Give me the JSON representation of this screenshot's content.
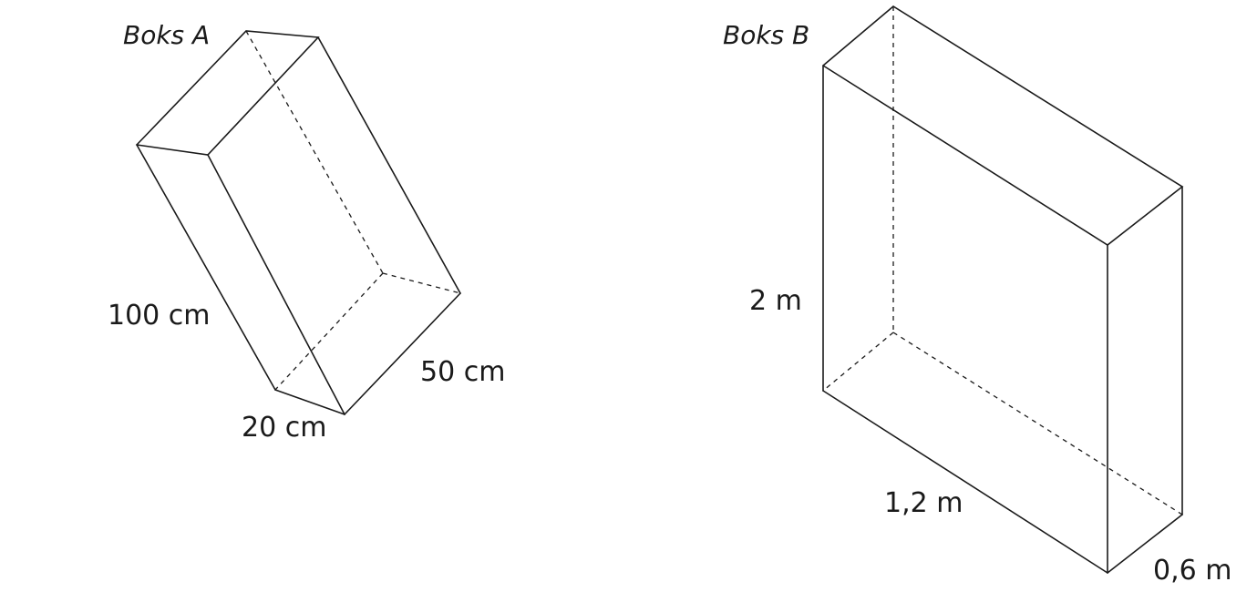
{
  "box_a": {
    "title": "Boks A",
    "length_label": "100 cm",
    "width_label": "20 cm",
    "height_label": "50 cm"
  },
  "box_b": {
    "title": "Boks B",
    "height_label": "2 m",
    "length_label": "1,2 m",
    "depth_label": "0,6 m"
  }
}
